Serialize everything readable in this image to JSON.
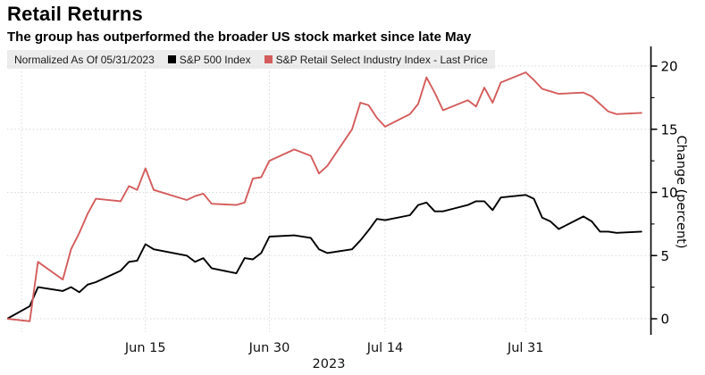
{
  "page": {
    "background": "#ffffff"
  },
  "header": {
    "title": "Retail Returns",
    "subtitle": "The group has outperformed the broader US stock market since late May"
  },
  "legend": {
    "note": "Normalized As Of 05/31/2023",
    "items": [
      {
        "label": "S&P 500 Index",
        "color": "#000000"
      },
      {
        "label": "S&P Retail Select Industry Index - Last Price",
        "color": "#d45c5c"
      }
    ]
  },
  "chart_data": {
    "type": "line",
    "title": "Retail Returns",
    "subtitle": "The group has outperformed the broader US stock market since late May",
    "ylabel": "Change (percent)",
    "year_label": "2023",
    "x_unit": "calendar days since 2023-05-31",
    "x": [
      0,
      1,
      2,
      5,
      6,
      7,
      8,
      9,
      12,
      13,
      14,
      15,
      16,
      20,
      21,
      22,
      23,
      26,
      27,
      28,
      29,
      30,
      33,
      35,
      36,
      37,
      40,
      41,
      42,
      43,
      44,
      47,
      48,
      49,
      50,
      51,
      54,
      55,
      56,
      57,
      58,
      61,
      62,
      63,
      64,
      65,
      68,
      69,
      70,
      71,
      72,
      75
    ],
    "series": [
      {
        "name": "S&P 500 Index",
        "color": "#000000",
        "values": [
          0,
          1.0,
          2.5,
          2.2,
          2.5,
          2.1,
          2.7,
          2.9,
          3.8,
          4.5,
          4.6,
          5.9,
          5.5,
          5.0,
          4.5,
          4.8,
          4.0,
          3.6,
          4.8,
          4.7,
          5.2,
          6.5,
          6.6,
          6.4,
          5.5,
          5.2,
          5.5,
          6.2,
          7.0,
          7.9,
          7.8,
          8.2,
          9.0,
          9.2,
          8.5,
          8.5,
          9.0,
          9.3,
          9.3,
          8.6,
          9.6,
          9.8,
          9.5,
          8.0,
          7.7,
          7.1,
          8.1,
          7.7,
          6.9,
          6.9,
          6.8,
          6.9
        ]
      },
      {
        "name": "S&P Retail Select Industry Index - Last Price",
        "color": "#d45c5c",
        "values": [
          0,
          -0.2,
          4.5,
          3.1,
          5.5,
          6.8,
          8.3,
          9.5,
          9.3,
          10.5,
          10.2,
          11.9,
          10.2,
          9.4,
          9.7,
          9.9,
          9.1,
          9.0,
          9.2,
          11.1,
          11.2,
          12.5,
          13.4,
          12.9,
          11.5,
          12.1,
          15.0,
          17.1,
          16.9,
          15.9,
          15.2,
          16.2,
          17.0,
          19.1,
          17.9,
          16.5,
          17.3,
          16.8,
          18.3,
          17.1,
          18.7,
          19.5,
          18.9,
          18.2,
          18.0,
          17.8,
          17.9,
          17.6,
          17.0,
          16.4,
          16.2,
          16.3
        ]
      }
    ],
    "x_ticks": [
      {
        "day": 15,
        "label": "Jun 15"
      },
      {
        "day": 30,
        "label": "Jun 30"
      },
      {
        "day": 44,
        "label": "Jul 14"
      },
      {
        "day": 61,
        "label": "Jul 31"
      }
    ],
    "x_gridline_days": [
      0,
      15,
      30,
      44,
      61
    ],
    "y_ticks": [
      0,
      5,
      10,
      15,
      20
    ],
    "y_minor_ticks": [
      2.5,
      7.5,
      12.5,
      17.5
    ],
    "ylim": [
      -1.5,
      21.5
    ],
    "legend_position": "top",
    "grid": "dotted"
  },
  "colors": {
    "grid": "#d9d9d9",
    "axis": "#000000",
    "legend_bg": "#ececec",
    "sp500": "#000000",
    "retail": "#d45c5c"
  }
}
